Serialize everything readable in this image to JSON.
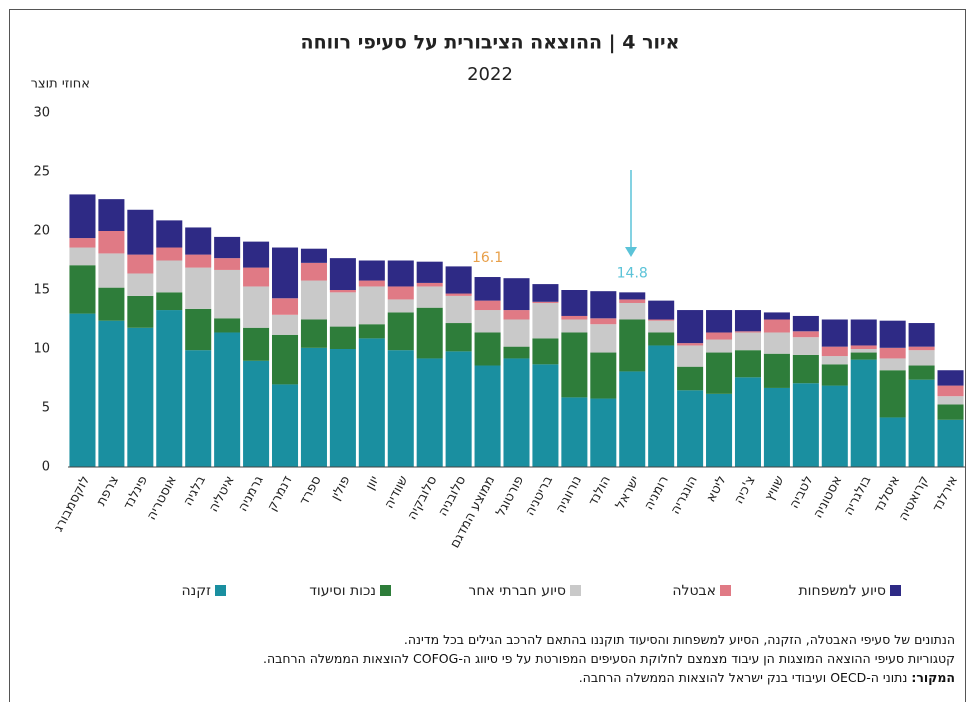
{
  "chart_data": {
    "type": "stacked_bar",
    "title": "איור 4 | ההוצאה הציבורית על סעיפי רווחה",
    "subtitle": "2022",
    "y_axis_label": "אחוזי תוצר",
    "categories": [
      "לוקסמבורג",
      "צרפת",
      "פינלנד",
      "אוסטריה",
      "בלגיה",
      "איטליה",
      "גרמניה",
      "דנמרק",
      "ספרד",
      "פולין",
      "יוון",
      "שוודיה",
      "סלובקיה",
      "סלובניה",
      "ממוצע המדגם",
      "פורטוגל",
      "בריטניה",
      "נורווגיה",
      "הולנד",
      "ישראל",
      "רומניה",
      "הונגריה",
      "ליטא",
      "צ'כיה",
      "שוויץ",
      "לטביה",
      "אסטוניה",
      "בולגריה",
      "איסלנד",
      "קרואטיה",
      "אירלנד"
    ],
    "series": [
      {
        "name": "זקנה",
        "color": "#1a8fa0",
        "values": [
          13.0,
          12.4,
          11.8,
          13.3,
          9.9,
          11.4,
          9.0,
          7.0,
          10.1,
          10.0,
          10.9,
          9.9,
          9.2,
          9.8,
          8.6,
          9.2,
          8.7,
          5.9,
          5.8,
          8.1,
          10.3,
          6.5,
          6.2,
          7.6,
          6.7,
          7.1,
          6.9,
          9.1,
          4.2,
          7.4,
          4.0
        ]
      },
      {
        "name": "נכות וסיעוד",
        "color": "#2e7d3a",
        "values": [
          4.1,
          2.8,
          2.7,
          1.5,
          3.5,
          1.2,
          2.8,
          4.2,
          2.4,
          1.9,
          1.2,
          3.2,
          4.3,
          2.4,
          2.8,
          1.0,
          2.2,
          5.5,
          3.9,
          4.4,
          1.1,
          2.0,
          3.5,
          2.3,
          2.9,
          2.4,
          1.8,
          0.6,
          4.0,
          1.2,
          1.3
        ]
      },
      {
        "name": "סיוע חברתי אחר",
        "color": "#c9c9c9",
        "values": [
          1.5,
          2.9,
          1.9,
          2.7,
          3.5,
          4.1,
          3.5,
          1.7,
          3.3,
          2.9,
          3.2,
          1.1,
          1.8,
          2.3,
          1.9,
          2.3,
          3.0,
          1.1,
          2.4,
          1.4,
          1.0,
          1.8,
          1.1,
          1.5,
          1.8,
          1.5,
          0.7,
          0.3,
          1.0,
          1.3,
          0.7
        ]
      },
      {
        "name": "אבטלה",
        "color": "#e07a85",
        "values": [
          0.8,
          1.9,
          1.6,
          1.1,
          1.1,
          1.0,
          1.6,
          1.4,
          1.5,
          0.2,
          0.5,
          1.1,
          0.3,
          0.2,
          0.8,
          0.8,
          0.1,
          0.3,
          0.5,
          0.3,
          0.1,
          0.2,
          0.6,
          0.1,
          1.1,
          0.5,
          0.8,
          0.3,
          0.9,
          0.3,
          0.9
        ]
      },
      {
        "name": "סיוע למשפחות",
        "color": "#2e2a85",
        "values": [
          3.7,
          2.7,
          3.8,
          2.3,
          2.3,
          1.8,
          2.2,
          4.3,
          1.2,
          2.7,
          1.7,
          2.2,
          1.8,
          2.3,
          2.0,
          2.7,
          1.5,
          2.2,
          2.3,
          0.6,
          1.6,
          2.8,
          1.9,
          1.8,
          0.6,
          1.3,
          2.3,
          2.2,
          2.3,
          2.0,
          1.3
        ]
      }
    ],
    "total_labels": [
      {
        "category": "ממוצע המדגם",
        "value": 16.1,
        "color": "#e8a04a"
      },
      {
        "category": "ישראל",
        "value": 14.8,
        "color": "#5bc3d8"
      }
    ],
    "ylim": [
      0,
      30
    ],
    "yticks": [
      0,
      5,
      10,
      15,
      20,
      25,
      30
    ],
    "grid": false,
    "notes": [
      "הנתונים של סעיפי האבטלה, הזקנה, הסיוע למשפחות והסיעוד תוקננו בהתאם להרכב הגילים בכל מדינה.",
      "קטגוריות סעיפי ההוצאה המוצגות הן עיבוד מצמצם לחלוקת הסעיפים המפורטת על פי סיווג ה-COFOG להוצאות הממשלה הרחבה."
    ],
    "source_label": "המקור:",
    "source": "נתוני ה-OECD ועיבודי בנק ישראל להוצאות הממשלה הרחבה."
  }
}
